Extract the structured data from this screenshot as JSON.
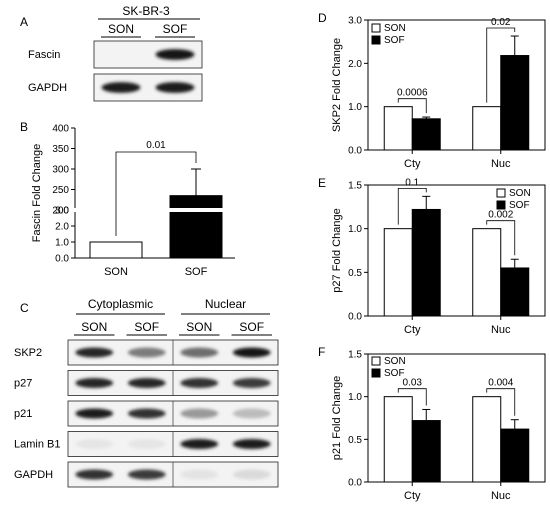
{
  "panel_a": {
    "label": "A",
    "cell_line": "SK-BR-3",
    "columns": [
      "SON",
      "SOF"
    ],
    "rows": [
      {
        "name": "Fascin",
        "intensities": [
          0.0,
          0.95
        ]
      },
      {
        "name": "GAPDH",
        "intensities": [
          0.9,
          0.9
        ]
      }
    ]
  },
  "panel_c": {
    "label": "C",
    "groups": [
      "Cytoplasmic",
      "Nuclear"
    ],
    "columns": [
      "SON",
      "SOF",
      "SON",
      "SOF"
    ],
    "rows": [
      {
        "name": "SKP2",
        "intensities": [
          0.85,
          0.55,
          0.6,
          0.95
        ]
      },
      {
        "name": "p27",
        "intensities": [
          0.85,
          0.85,
          0.8,
          0.75
        ]
      },
      {
        "name": "p21",
        "intensities": [
          0.9,
          0.8,
          0.45,
          0.3
        ]
      },
      {
        "name": "Lamin B1",
        "intensities": [
          0.03,
          0.03,
          0.9,
          0.9
        ]
      },
      {
        "name": "GAPDH",
        "intensities": [
          0.8,
          0.75,
          0.05,
          0.12
        ]
      }
    ]
  },
  "chart_data": [
    {
      "panel": "B",
      "type": "bar",
      "title": "",
      "ylabel": "Fascin Fold Change",
      "categories": [
        "SON",
        "SOF"
      ],
      "series": [
        {
          "values": [
            1.0,
            235
          ],
          "errors": [
            0,
            65
          ]
        }
      ],
      "axis_break": {
        "lower": [
          0,
          3.0
        ],
        "upper": [
          200,
          400
        ]
      },
      "yticks_lower": [
        "0.0",
        "1.0",
        "2.0",
        "3.0"
      ],
      "yticks_upper": [
        "200",
        "250",
        "300",
        "350",
        "400"
      ],
      "annotations": [
        {
          "text": "0.01",
          "between": [
            "SON",
            "SOF"
          ]
        }
      ],
      "grid": false
    },
    {
      "panel": "D",
      "type": "bar",
      "ylabel": "SKP2 Fold Change",
      "categories": [
        "Cty",
        "Nuc"
      ],
      "ylim": [
        0,
        3.0
      ],
      "yticks": [
        "0.0",
        "1.0",
        "2.0",
        "3.0"
      ],
      "series": [
        {
          "name": "SON",
          "values": [
            1.0,
            1.0
          ],
          "errors": [
            0,
            0
          ]
        },
        {
          "name": "SOF",
          "values": [
            0.72,
            2.18
          ],
          "errors": [
            0.04,
            0.45
          ]
        }
      ],
      "annotations": [
        {
          "text": "0.0006",
          "category": "Cty"
        },
        {
          "text": "0.02",
          "category": "Nuc"
        }
      ],
      "legend": "top-left",
      "grid": false
    },
    {
      "panel": "E",
      "type": "bar",
      "ylabel": "p27 Fold Change",
      "categories": [
        "Cty",
        "Nuc"
      ],
      "ylim": [
        0,
        1.5
      ],
      "yticks": [
        "0.0",
        "0.5",
        "1.0",
        "1.5"
      ],
      "series": [
        {
          "name": "SON",
          "values": [
            1.0,
            1.0
          ],
          "errors": [
            0,
            0
          ]
        },
        {
          "name": "SOF",
          "values": [
            1.22,
            0.55
          ],
          "errors": [
            0.15,
            0.1
          ]
        }
      ],
      "annotations": [
        {
          "text": "0.1",
          "category": "Cty"
        },
        {
          "text": "0.002",
          "category": "Nuc"
        }
      ],
      "legend": "top-right",
      "grid": false
    },
    {
      "panel": "F",
      "type": "bar",
      "ylabel": "p21 Fold Change",
      "categories": [
        "Cty",
        "Nuc"
      ],
      "ylim": [
        0,
        1.5
      ],
      "yticks": [
        "0.0",
        "0.5",
        "1.0",
        "1.5"
      ],
      "series": [
        {
          "name": "SON",
          "values": [
            1.0,
            1.0
          ],
          "errors": [
            0,
            0
          ]
        },
        {
          "name": "SOF",
          "values": [
            0.72,
            0.62
          ],
          "errors": [
            0.13,
            0.11
          ]
        }
      ],
      "annotations": [
        {
          "text": "0.03",
          "category": "Cty"
        },
        {
          "text": "0.004",
          "category": "Nuc"
        }
      ],
      "legend": "top-left",
      "grid": false
    }
  ]
}
